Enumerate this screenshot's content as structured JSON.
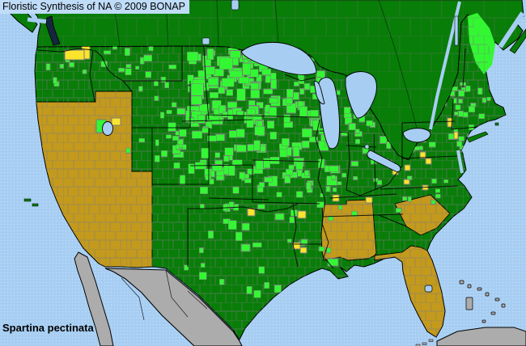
{
  "header": {
    "title": "Floristic Synthesis of NA © 2009 BONAP"
  },
  "footer": {
    "species_label": "Spartina pectinata"
  },
  "palette": {
    "water": "#A7CEF2",
    "water_dot": "#C9E2FB",
    "titlebar_bg": "#BFDCF8",
    "state_present": "#087D08",
    "county_present": "#33F733",
    "county_rare": "#FBE42C",
    "state_absent": "#C49A1C",
    "other_land": "#ACACAC",
    "county_line": "#7B7B7B",
    "state_line": "#000000",
    "sound_water": "#14273F",
    "text": "#000000"
  },
  "legend_semantics": {
    "dark_green": "present in state or province",
    "bright_green": "present in county",
    "yellow": "rare in county",
    "gold_tan": "absent from state",
    "light_blue": "water",
    "gray": "land outside survey area (Mexico, Cuba, Bahamas)"
  },
  "map_observations": {
    "absent_states_tan": [
      "California",
      "Nevada",
      "Arizona",
      "Mississippi",
      "Alabama",
      "South Carolina",
      "Florida"
    ],
    "rare_yellow_areas": [
      "southeast Washington / northeast Oregon",
      "northern Utah",
      "eastern Oklahoma",
      "western Arkansas",
      "central Louisiana",
      "Tennessee",
      "southwest Virginia",
      "eastern Virginia",
      "northeast North Carolina",
      "southern New Jersey",
      "Delaware"
    ],
    "dense_present_areas": [
      "North Dakota",
      "South Dakota",
      "Minnesota",
      "Nebraska",
      "Iowa",
      "Illinois",
      "Wisconsin",
      "Michigan",
      "New York",
      "New England",
      "Maine"
    ]
  }
}
